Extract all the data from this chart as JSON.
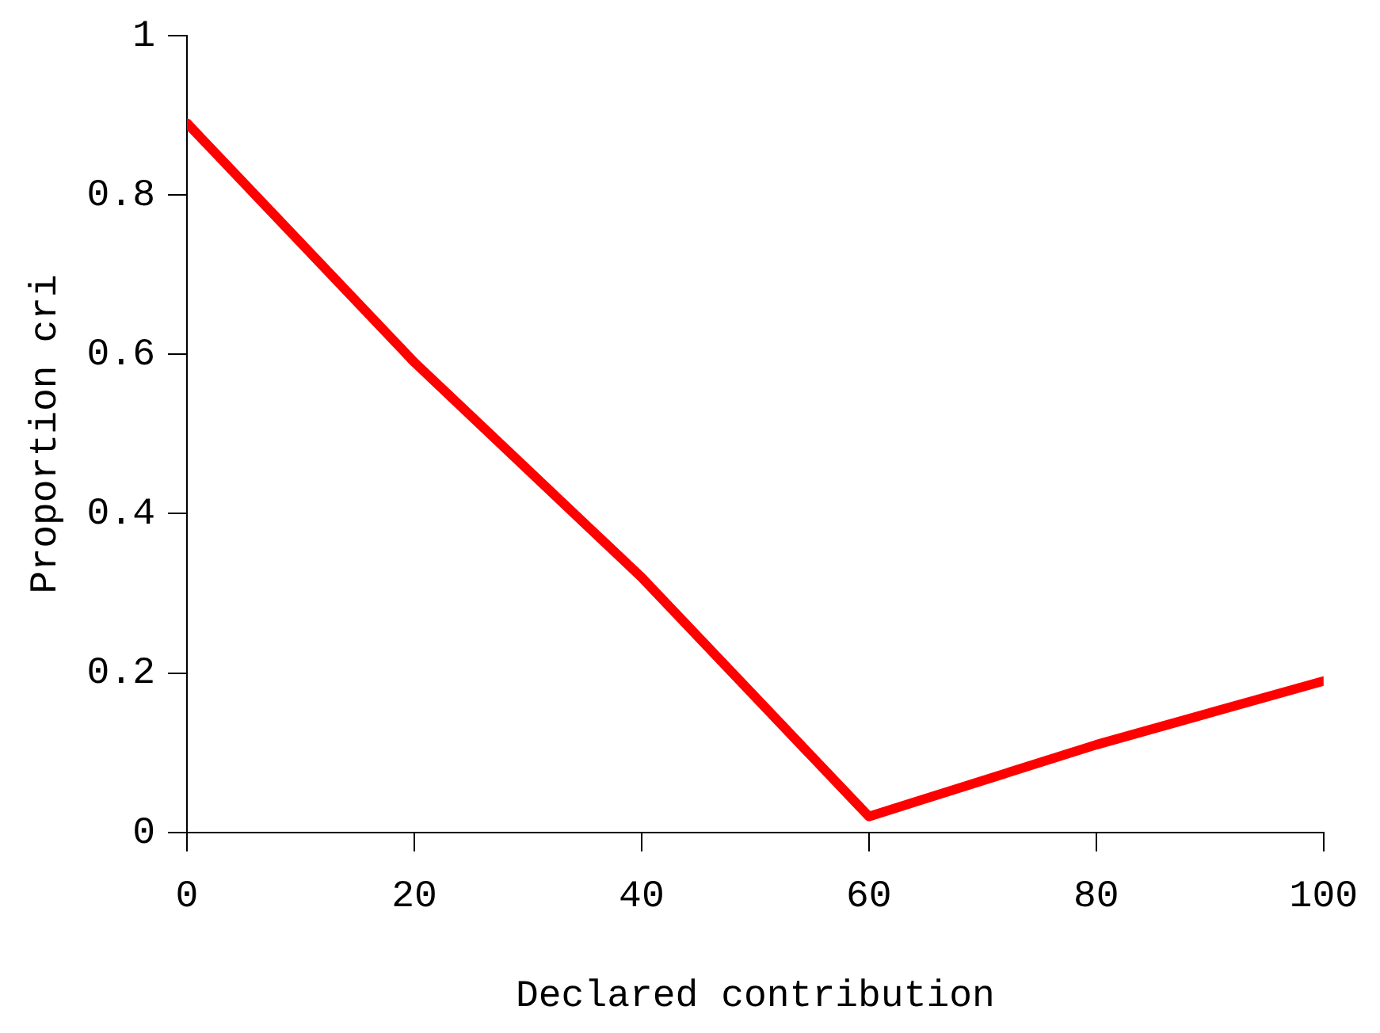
{
  "chart_data": {
    "type": "line",
    "xlabel": "Declared contribution",
    "ylabel": "Proportion cri",
    "x": [
      0,
      20,
      40,
      60,
      80,
      100
    ],
    "series": [
      {
        "color": "#ff0000",
        "values": [
          0.89,
          0.59,
          0.32,
          0.02,
          0.11,
          0.19
        ]
      }
    ],
    "xlim": [
      0,
      100
    ],
    "xticks": [
      0,
      20,
      40,
      60,
      80,
      100
    ],
    "ylim": [
      0,
      1
    ],
    "yticks": [
      0,
      0.2,
      0.4,
      0.6,
      0.8,
      1
    ],
    "grid": false,
    "legend": false,
    "marker": "none",
    "line_style": "solid"
  }
}
